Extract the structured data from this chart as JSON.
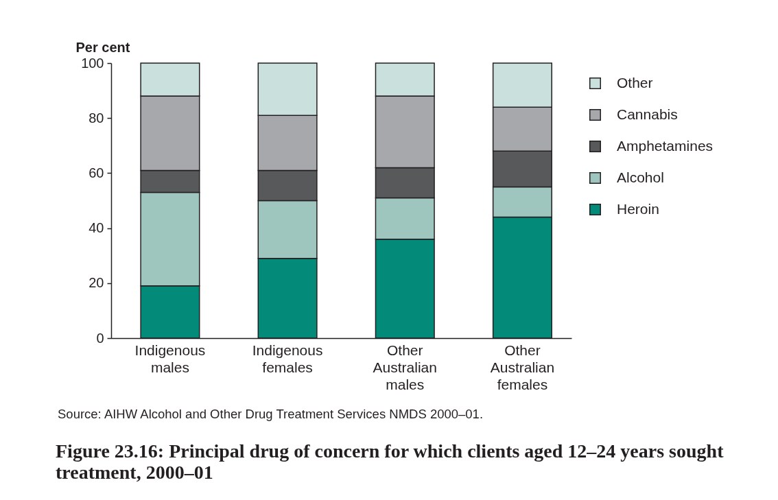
{
  "chart_data": {
    "type": "bar",
    "stacked": true,
    "title": "Figure 23.16: Principal drug of concern for which clients aged 12–24 years sought treatment, 2000–01",
    "ylabel": "Per cent",
    "categories": [
      "Indigenous males",
      "Indigenous females",
      "Other Australian males",
      "Other Australian females"
    ],
    "series": [
      {
        "name": "Heroin",
        "color": "#038a79",
        "values": [
          19,
          29,
          36,
          44
        ]
      },
      {
        "name": "Alcohol",
        "color": "#9fc6be",
        "values": [
          34,
          21,
          15,
          11
        ]
      },
      {
        "name": "Amphetamines",
        "color": "#58595b",
        "values": [
          8,
          11,
          11,
          13
        ]
      },
      {
        "name": "Cannabis",
        "color": "#a7a8ab",
        "values": [
          27,
          20,
          26,
          16
        ]
      },
      {
        "name": "Other",
        "color": "#c9e0dc",
        "values": [
          12,
          19,
          12,
          16
        ]
      }
    ],
    "ylim": [
      0,
      100
    ],
    "yticks": [
      0,
      20,
      40,
      60,
      80,
      100
    ],
    "grid": false,
    "legend": "right",
    "annotations": [
      "Source: AIHW Alcohol and Other Drug Treatment Services NMDS 2000–01."
    ]
  }
}
